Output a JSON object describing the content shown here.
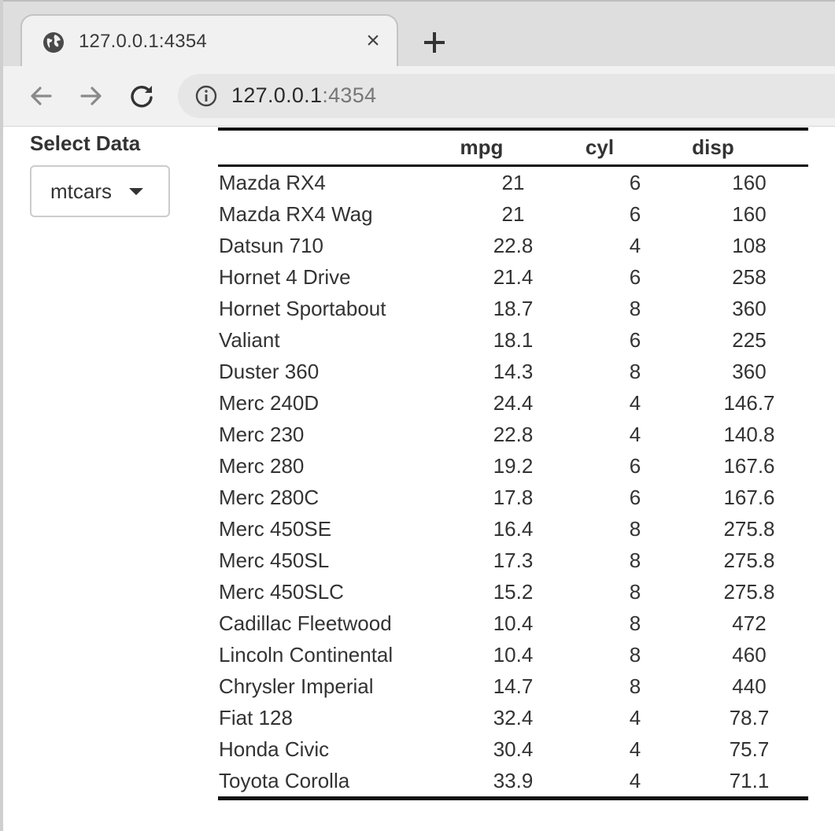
{
  "browser": {
    "tab_title": "127.0.0.1:4354",
    "close_glyph": "×",
    "favicon": "globe-icon",
    "url_host": "127.0.0.1",
    "url_port": ":4354",
    "accent": "#f1f1f1"
  },
  "sidebar": {
    "select_label": "Select Data",
    "select_value": "mtcars"
  },
  "table": {
    "headers": [
      "",
      "mpg",
      "cyl",
      "disp"
    ],
    "rows": [
      {
        "name": "Mazda RX4",
        "mpg": "21",
        "cyl": "6",
        "disp": "160"
      },
      {
        "name": "Mazda RX4 Wag",
        "mpg": "21",
        "cyl": "6",
        "disp": "160"
      },
      {
        "name": "Datsun 710",
        "mpg": "22.8",
        "cyl": "4",
        "disp": "108"
      },
      {
        "name": "Hornet 4 Drive",
        "mpg": "21.4",
        "cyl": "6",
        "disp": "258"
      },
      {
        "name": "Hornet Sportabout",
        "mpg": "18.7",
        "cyl": "8",
        "disp": "360"
      },
      {
        "name": "Valiant",
        "mpg": "18.1",
        "cyl": "6",
        "disp": "225"
      },
      {
        "name": "Duster 360",
        "mpg": "14.3",
        "cyl": "8",
        "disp": "360"
      },
      {
        "name": "Merc 240D",
        "mpg": "24.4",
        "cyl": "4",
        "disp": "146.7"
      },
      {
        "name": "Merc 230",
        "mpg": "22.8",
        "cyl": "4",
        "disp": "140.8"
      },
      {
        "name": "Merc 280",
        "mpg": "19.2",
        "cyl": "6",
        "disp": "167.6"
      },
      {
        "name": "Merc 280C",
        "mpg": "17.8",
        "cyl": "6",
        "disp": "167.6"
      },
      {
        "name": "Merc 450SE",
        "mpg": "16.4",
        "cyl": "8",
        "disp": "275.8"
      },
      {
        "name": "Merc 450SL",
        "mpg": "17.3",
        "cyl": "8",
        "disp": "275.8"
      },
      {
        "name": "Merc 450SLC",
        "mpg": "15.2",
        "cyl": "8",
        "disp": "275.8"
      },
      {
        "name": "Cadillac Fleetwood",
        "mpg": "10.4",
        "cyl": "8",
        "disp": "472"
      },
      {
        "name": "Lincoln Continental",
        "mpg": "10.4",
        "cyl": "8",
        "disp": "460"
      },
      {
        "name": "Chrysler Imperial",
        "mpg": "14.7",
        "cyl": "8",
        "disp": "440"
      },
      {
        "name": "Fiat 128",
        "mpg": "32.4",
        "cyl": "4",
        "disp": "78.7"
      },
      {
        "name": "Honda Civic",
        "mpg": "30.4",
        "cyl": "4",
        "disp": "75.7"
      },
      {
        "name": "Toyota Corolla",
        "mpg": "33.9",
        "cyl": "4",
        "disp": "71.1"
      }
    ]
  }
}
